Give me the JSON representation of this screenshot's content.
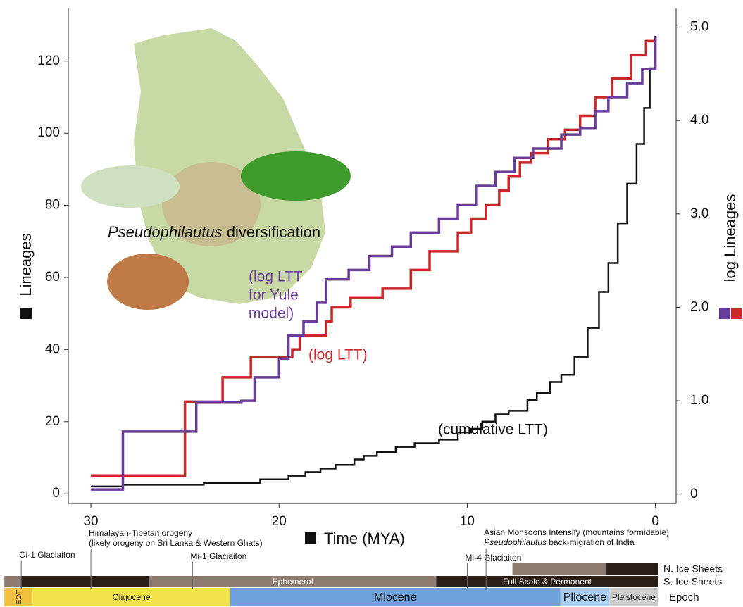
{
  "chart_data": {
    "type": "step-line",
    "drawstyle": "steps-post",
    "xlabel": "Time (MYA)",
    "ylabel": "Lineages",
    "y2label": "log Lineages",
    "xlim": [
      31.2,
      -1.1
    ],
    "xticks": [
      30,
      20,
      10,
      0
    ],
    "ylim": [
      -2.7,
      134.6
    ],
    "yticks": [
      0,
      20,
      40,
      60,
      80,
      100,
      120
    ],
    "y2lim": [
      -0.1,
      5.2
    ],
    "y2ticks": [
      0,
      {
        "value": 1,
        "label": "1.0"
      },
      {
        "value": 2,
        "label": "2.0"
      },
      {
        "value": 3,
        "label": "3.0"
      },
      {
        "value": 4,
        "label": "4.0"
      },
      {
        "value": 5,
        "label": "5.0"
      }
    ],
    "annotation": {
      "italic": "Pseudophilautus",
      "text": "diversification"
    },
    "series": [
      {
        "label_lines": [
          "(cumulative LTT)"
        ],
        "color": "#111111",
        "axis": "y",
        "x": [
          30,
          28.3,
          24,
          21,
          19.5,
          18.6,
          17.8,
          17,
          16,
          15.5,
          14.8,
          13.8,
          12.8,
          11.5,
          10.5,
          9.8,
          9.2,
          8.5,
          7.8,
          6.8,
          6.3,
          5.6,
          5,
          4.3,
          3.6,
          3,
          2.5,
          2,
          1.5,
          1,
          0.6,
          0.3,
          0
        ],
        "values": [
          2,
          2.5,
          3,
          4,
          5,
          6,
          7,
          8,
          9.5,
          10.5,
          11.5,
          13,
          14,
          15,
          17,
          18,
          20,
          22,
          23,
          26,
          28,
          31,
          33,
          38,
          46,
          56,
          64,
          75,
          86,
          97,
          107,
          118,
          127
        ]
      },
      {
        "label_lines": [
          "(log LTT)"
        ],
        "color": "#c8282a",
        "axis": "y2",
        "x": [
          30,
          25,
          23,
          21.5,
          19.3,
          18.9,
          17.5,
          17.2,
          16.2,
          14.5,
          13,
          12,
          10.5,
          9.8,
          9,
          8.3,
          7.8,
          7.2,
          6.6,
          5.7,
          4.8,
          4,
          3.2,
          2.3,
          1.3,
          0.5,
          0
        ],
        "values": [
          0.2,
          0.99,
          1.25,
          1.47,
          1.55,
          1.7,
          1.85,
          2.0,
          2.1,
          2.2,
          2.4,
          2.6,
          2.8,
          2.95,
          3.1,
          3.25,
          3.4,
          3.55,
          3.65,
          3.8,
          3.9,
          4.05,
          4.25,
          4.45,
          4.7,
          4.85,
          4.9
        ]
      },
      {
        "label_lines": [
          "(log LTT",
          "for Yule",
          "model)"
        ],
        "color": "#6a3d9a",
        "axis": "y2",
        "x": [
          30,
          28.3,
          24.4,
          22,
          21.3,
          20,
          19.5,
          18.7,
          18,
          17.5,
          16.3,
          15.2,
          14,
          13,
          11.5,
          10.5,
          9.5,
          8.5,
          7.5,
          6.5,
          5,
          4,
          3.2,
          2.5,
          1.5,
          0.7,
          0
        ],
        "values": [
          0.05,
          0.67,
          0.98,
          1.0,
          1.25,
          1.45,
          1.7,
          1.85,
          2.05,
          2.3,
          2.4,
          2.55,
          2.65,
          2.8,
          2.95,
          3.1,
          3.3,
          3.45,
          3.6,
          3.7,
          3.85,
          3.92,
          4.1,
          4.25,
          4.4,
          4.55,
          4.9
        ]
      }
    ],
    "timeline": {
      "events": [
        {
          "time": 33.7,
          "lines": [
            "Oi-1 Glaciaiton"
          ]
        },
        {
          "time": 30,
          "lines": [
            "Himalayan-Tibetan orogeny",
            "(likely orogeny on Sri Lanka & Western Ghats)"
          ]
        },
        {
          "time": 24.6,
          "lines": [
            "Mi-1 Glaciaiton"
          ]
        },
        {
          "time": 10,
          "lines": [
            "Mi-4 Glaciaiton"
          ]
        },
        {
          "time": 9,
          "lines": [
            "Asian Monsoons Intensify (mountains formidable)"
          ],
          "italic": "Pseudophilautus",
          "text": "back-migration of India"
        }
      ],
      "rows": [
        {
          "name": "N. Ice Sheets",
          "bands": [
            {
              "start": 7.6,
              "end": 2.6,
              "color": "#8c7b6e"
            },
            {
              "start": 2.6,
              "end": -0.15,
              "color": "#2a1f18"
            }
          ]
        },
        {
          "name": "S. Ice Sheets",
          "bands": [
            {
              "start": 34.6,
              "end": 33.7,
              "color": "#8c7b6e"
            },
            {
              "start": 33.7,
              "end": 26.9,
              "color": "#2a1f18"
            },
            {
              "start": 26.9,
              "end": 11.65,
              "color": "#8c7b6e",
              "label": "Ephemeral"
            },
            {
              "start": 11.65,
              "end": -0.15,
              "color": "#2a1f18",
              "label": "Full Scale & Permanent"
            }
          ]
        },
        {
          "name": "Epoch",
          "bands": [
            {
              "start": 34.6,
              "end": 33.1,
              "color": "#f0c040",
              "label": "EOT"
            },
            {
              "start": 33.1,
              "end": 22.6,
              "color": "#f2e24a",
              "label": "Oligocene"
            },
            {
              "start": 22.6,
              "end": 5.05,
              "color": "#6fa2dc",
              "label": "Miocene"
            },
            {
              "start": 5.05,
              "end": 2.45,
              "color": "#a8cdef",
              "label": "Pliocene"
            },
            {
              "start": 2.45,
              "end": -0.15,
              "color": "#cccccc",
              "label": "Pleistocene"
            }
          ]
        }
      ]
    }
  }
}
